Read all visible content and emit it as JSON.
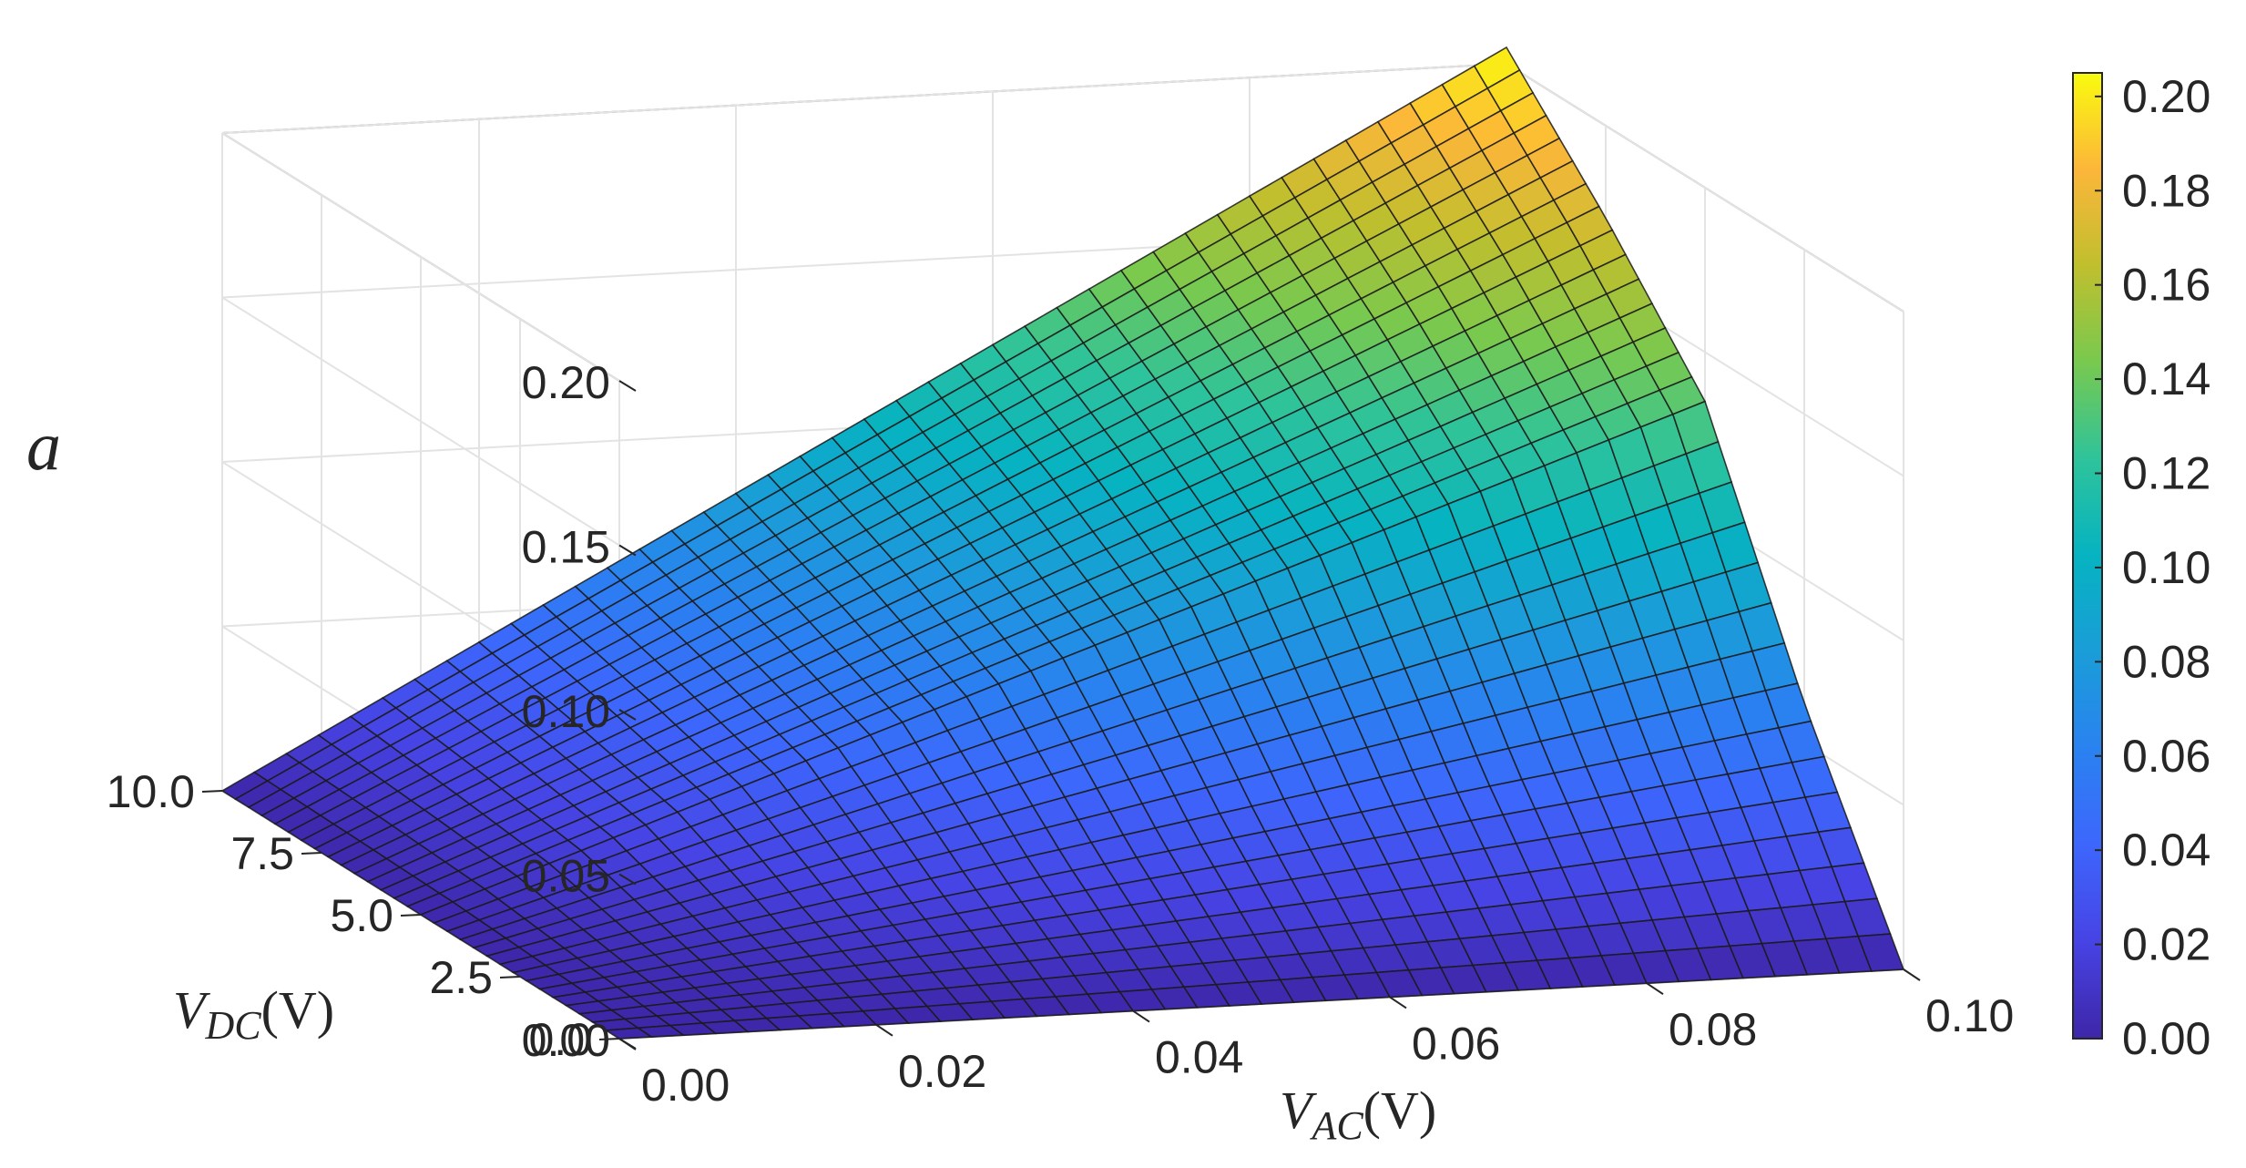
{
  "chart_data": {
    "type": "surface",
    "title": "",
    "x_axis": {
      "var": "V",
      "sub": "AC",
      "unit": "(V)",
      "range": [
        0,
        0.1
      ],
      "ticks": [
        "0.00",
        "0.02",
        "0.04",
        "0.06",
        "0.08",
        "0.10"
      ],
      "tick_values": [
        0,
        0.02,
        0.04,
        0.06,
        0.08,
        0.1
      ]
    },
    "y_axis": {
      "var": "V",
      "sub": "DC",
      "unit": "(V)",
      "range": [
        0,
        10
      ],
      "ticks": [
        "0.0",
        "2.5",
        "5.0",
        "7.5",
        "10.0"
      ],
      "tick_values": [
        0,
        2.5,
        5,
        7.5,
        10
      ]
    },
    "z_axis": {
      "label": "a",
      "range": [
        0,
        0.2
      ],
      "ticks": [
        "0.00",
        "0.05",
        "0.10",
        "0.15",
        "0.20"
      ],
      "tick_values": [
        0,
        0.05,
        0.1,
        0.15,
        0.2
      ]
    },
    "colorbar": {
      "range": [
        0,
        0.205
      ],
      "ticks": [
        "0.00",
        "0.02",
        "0.04",
        "0.06",
        "0.08",
        "0.10",
        "0.12",
        "0.14",
        "0.16",
        "0.18",
        "0.20"
      ],
      "tick_values": [
        0,
        0.02,
        0.04,
        0.06,
        0.08,
        0.1,
        0.12,
        0.14,
        0.16,
        0.18,
        0.2
      ]
    },
    "colormap": "parula",
    "grid": true,
    "surface_samples": {
      "description_of_axes": "rows: V_DC values, cols: V_AC values, entries: a",
      "V_AC": [
        0.0,
        0.02,
        0.04,
        0.06,
        0.08,
        0.1
      ],
      "V_DC": [
        0.0,
        2.5,
        5.0,
        7.5,
        10.0
      ],
      "a": [
        [
          0.0,
          0.0,
          0.0,
          0.0,
          0.0,
          0.0
        ],
        [
          0.0,
          0.012,
          0.025,
          0.037,
          0.05,
          0.062
        ],
        [
          0.0,
          0.028,
          0.057,
          0.085,
          0.113,
          0.135
        ],
        [
          0.0,
          0.034,
          0.069,
          0.103,
          0.137,
          0.172
        ],
        [
          0.0,
          0.041,
          0.082,
          0.123,
          0.164,
          0.205
        ]
      ]
    }
  }
}
